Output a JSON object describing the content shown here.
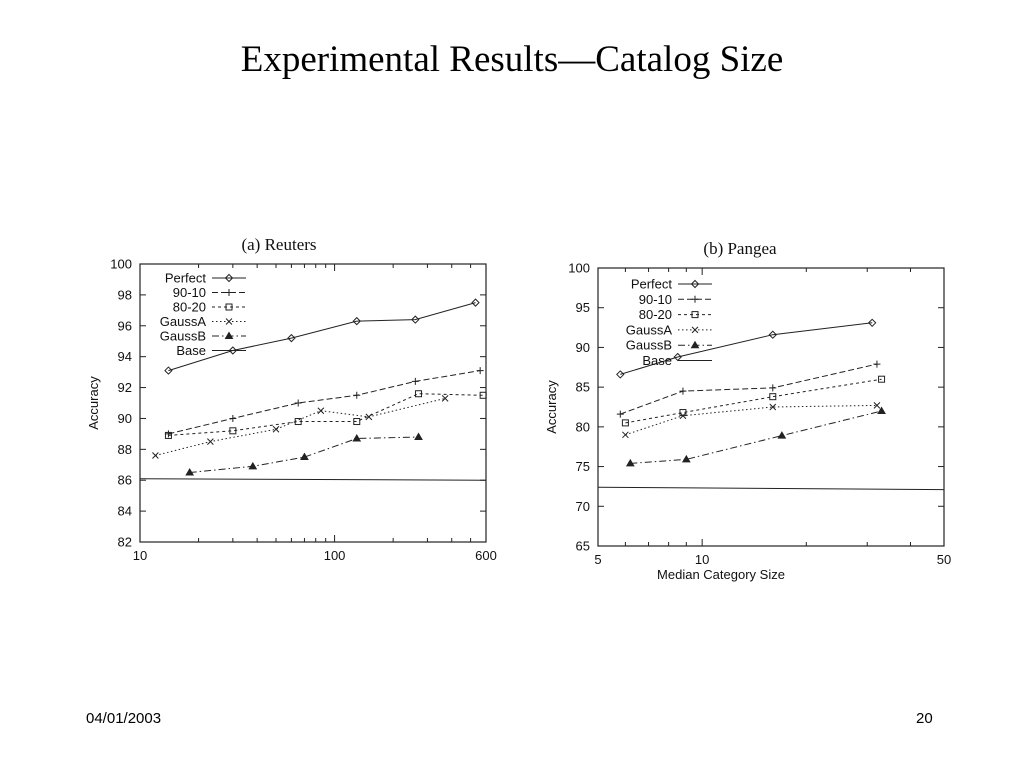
{
  "slide": {
    "title": "Experimental Results—Catalog Size",
    "date": "04/01/2003",
    "page_number": "20"
  },
  "chart_data": [
    {
      "type": "line",
      "title": "(a) Reuters",
      "xlabel": "",
      "ylabel": "Accuracy",
      "xscale": "log",
      "xlim": [
        10,
        600
      ],
      "ylim": [
        82,
        100
      ],
      "x_tick_labels": [
        "10",
        "100",
        "600"
      ],
      "y_tick_labels": [
        "100",
        "98",
        "96",
        "94",
        "92",
        "90",
        "88",
        "86",
        "84",
        "82"
      ],
      "legend_position": "top-left",
      "series": [
        {
          "name": "Perfect",
          "marker": "diamond",
          "dash": "solid",
          "x": [
            14,
            30,
            60,
            130,
            260,
            530
          ],
          "y": [
            93.1,
            94.4,
            95.2,
            96.3,
            96.4,
            97.5
          ]
        },
        {
          "name": "90-10",
          "marker": "plus",
          "dash": "longdash",
          "x": [
            14,
            30,
            65,
            130,
            260,
            560
          ],
          "y": [
            89.0,
            90.0,
            91.0,
            91.5,
            92.4,
            93.1
          ]
        },
        {
          "name": "80-20",
          "marker": "square",
          "dash": "shortdash",
          "x": [
            14,
            30,
            65,
            130,
            270,
            580
          ],
          "y": [
            88.9,
            89.2,
            89.8,
            89.8,
            91.6,
            91.5
          ]
        },
        {
          "name": "GaussA",
          "marker": "cross",
          "dash": "dotted",
          "x": [
            12,
            23,
            50,
            85,
            150,
            370
          ],
          "y": [
            87.6,
            88.5,
            89.3,
            90.5,
            90.1,
            91.3
          ]
        },
        {
          "name": "GaussB",
          "marker": "triangle",
          "dash": "dashdot",
          "x": [
            18,
            38,
            70,
            130,
            270
          ],
          "y": [
            86.5,
            86.9,
            87.5,
            88.7,
            88.8
          ]
        },
        {
          "name": "Base",
          "marker": "none",
          "dash": "solid",
          "x": [
            10,
            600
          ],
          "y": [
            86.1,
            86.0
          ]
        }
      ]
    },
    {
      "type": "line",
      "title": "(b) Pangea",
      "xlabel": "Median Category Size",
      "ylabel": "Accuracy",
      "xscale": "log",
      "xlim": [
        5,
        50
      ],
      "ylim": [
        65,
        100
      ],
      "x_tick_labels": [
        "5",
        "10",
        "50"
      ],
      "y_tick_labels": [
        "100",
        "95",
        "90",
        "85",
        "80",
        "75",
        "70",
        "65"
      ],
      "legend_position": "top-left",
      "series": [
        {
          "name": "Perfect",
          "marker": "diamond",
          "dash": "solid",
          "x": [
            5.8,
            8.5,
            16,
            31
          ],
          "y": [
            86.6,
            88.8,
            91.6,
            93.1
          ]
        },
        {
          "name": "90-10",
          "marker": "plus",
          "dash": "longdash",
          "x": [
            5.8,
            8.8,
            16,
            32
          ],
          "y": [
            81.6,
            84.5,
            84.9,
            87.9
          ]
        },
        {
          "name": "80-20",
          "marker": "square",
          "dash": "shortdash",
          "x": [
            6,
            8.8,
            16,
            33
          ],
          "y": [
            80.5,
            81.8,
            83.8,
            86.0
          ]
        },
        {
          "name": "GaussA",
          "marker": "cross",
          "dash": "dotted",
          "x": [
            6,
            8.8,
            16,
            32
          ],
          "y": [
            79.0,
            81.4,
            82.5,
            82.7
          ]
        },
        {
          "name": "GaussB",
          "marker": "triangle",
          "dash": "dashdot",
          "x": [
            6.2,
            9,
            17,
            33
          ],
          "y": [
            75.4,
            75.9,
            78.9,
            82.0
          ]
        },
        {
          "name": "Base",
          "marker": "none",
          "dash": "solid",
          "x": [
            5,
            50
          ],
          "y": [
            72.4,
            72.1
          ]
        }
      ]
    }
  ]
}
